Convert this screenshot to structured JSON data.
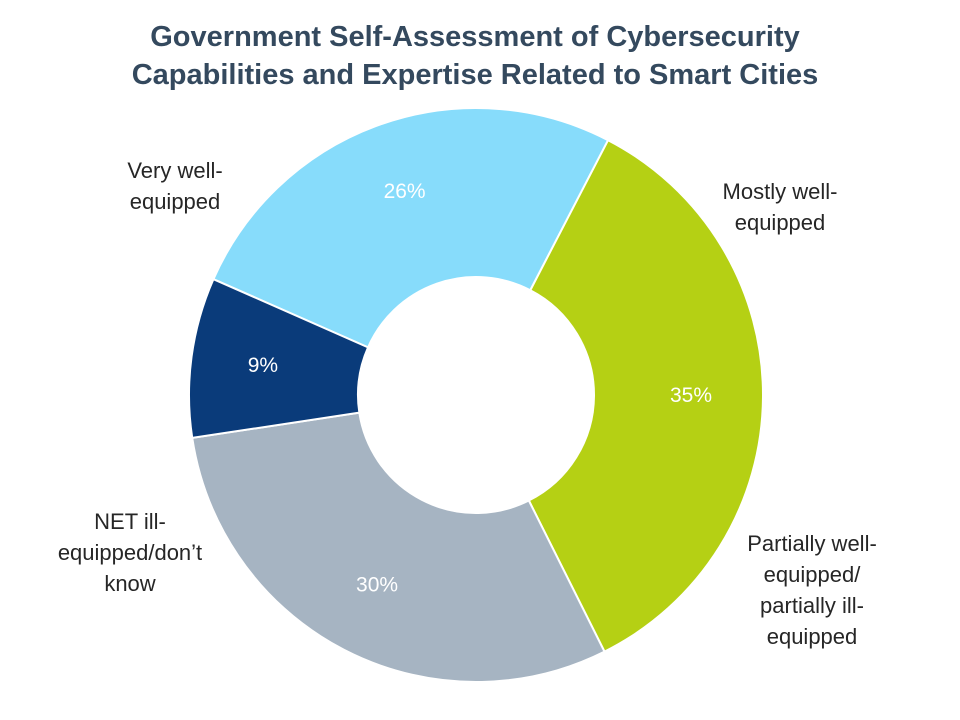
{
  "chart_data": {
    "type": "donut",
    "title_lines": [
      "Government Self-Assessment of Cybersecurity",
      "Capabilities and Expertise Related to Smart Cities"
    ],
    "slices": [
      {
        "label_lines": [
          "Mostly well-",
          "equipped"
        ],
        "value": 26,
        "value_label": "26%",
        "color": "#87dcfb",
        "value_text_color": "#ffffff"
      },
      {
        "label_lines": [
          "Partially well-",
          "equipped/",
          "partially ill-",
          "equipped"
        ],
        "value": 35,
        "value_label": "35%",
        "color": "#b5d014",
        "value_text_color": "#ffffff"
      },
      {
        "label_lines": [
          "NET ill-",
          "equipped/don’t",
          "know"
        ],
        "value": 30,
        "value_label": "30%",
        "color": "#a6b4c2",
        "value_text_color": "#ffffff"
      },
      {
        "label_lines": [
          "Very well-",
          "equipped"
        ],
        "value": 9,
        "value_label": "9%",
        "color": "#0a3b7a",
        "value_text_color": "#ffffff"
      }
    ]
  }
}
